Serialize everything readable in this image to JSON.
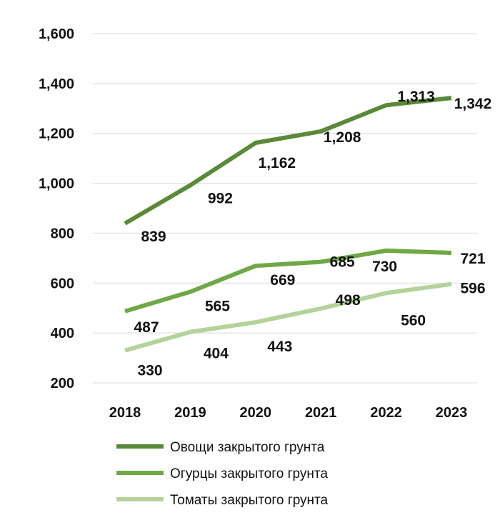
{
  "chart_data": {
    "type": "line",
    "title": "",
    "xlabel": "",
    "ylabel": "",
    "x": [
      "2018",
      "2019",
      "2020",
      "2021",
      "2022",
      "2023"
    ],
    "ylim": [
      200,
      1600
    ],
    "yticks": [
      "200",
      "400",
      "600",
      "800",
      "1,000",
      "1,200",
      "1,400",
      "1,600"
    ],
    "ytick_values": [
      200,
      400,
      600,
      800,
      1000,
      1200,
      1400,
      1600
    ],
    "grid": true,
    "legend_position": "bottom",
    "series": [
      {
        "name": "Овощи закрытого грунта",
        "color": "#5a8a37",
        "values": [
          839,
          992,
          1162,
          1208,
          1313,
          1342
        ],
        "labels": [
          "839",
          "992",
          "1,162",
          "1,208",
          "1,313",
          "1,342"
        ]
      },
      {
        "name": "Огурцы закрытого грунта",
        "color": "#6fa845",
        "values": [
          487,
          565,
          669,
          685,
          730,
          721
        ],
        "labels": [
          "487",
          "565",
          "669",
          "685",
          "730",
          "721"
        ]
      },
      {
        "name": "Томаты закрытого грунта",
        "color": "#b3d39a",
        "values": [
          330,
          404,
          443,
          498,
          560,
          596
        ],
        "labels": [
          "330",
          "404",
          "443",
          "498",
          "560",
          "596"
        ]
      }
    ]
  }
}
